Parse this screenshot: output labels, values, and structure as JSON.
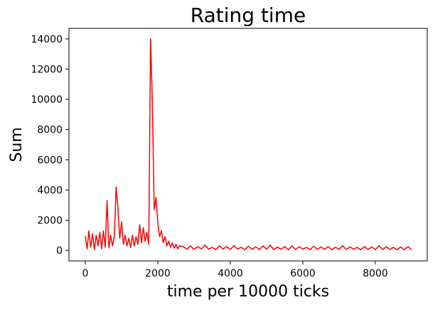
{
  "chart_data": {
    "type": "line",
    "title": "Rating time",
    "x_label": "time per 10000 ticks",
    "y_label": "Sum",
    "x": [
      0,
      50,
      100,
      150,
      200,
      250,
      300,
      350,
      400,
      450,
      500,
      550,
      600,
      650,
      700,
      750,
      800,
      850,
      900,
      950,
      1000,
      1050,
      1100,
      1150,
      1200,
      1250,
      1300,
      1350,
      1400,
      1450,
      1500,
      1550,
      1600,
      1650,
      1700,
      1750,
      1800,
      1850,
      1900,
      1950,
      2000,
      2050,
      2100,
      2150,
      2200,
      2250,
      2300,
      2350,
      2400,
      2450,
      2500,
      2550,
      2600,
      2700,
      2800,
      2900,
      3000,
      3100,
      3200,
      3300,
      3400,
      3500,
      3600,
      3700,
      3800,
      3900,
      4000,
      4100,
      4200,
      4300,
      4400,
      4500,
      4600,
      4700,
      4800,
      4900,
      5000,
      5100,
      5200,
      5300,
      5400,
      5500,
      5600,
      5700,
      5800,
      5900,
      6000,
      6100,
      6200,
      6300,
      6400,
      6500,
      6600,
      6700,
      6800,
      6900,
      7000,
      7100,
      7200,
      7300,
      7400,
      7500,
      7600,
      7700,
      7800,
      7900,
      8000,
      8100,
      8200,
      8300,
      8400,
      8500,
      8600,
      8700,
      8800,
      8900,
      9000
    ],
    "series": [
      {
        "name": "Sum",
        "color": "#ff0000",
        "values": [
          950,
          100,
          1300,
          200,
          1100,
          50,
          1000,
          300,
          1200,
          100,
          1300,
          200,
          3300,
          150,
          1000,
          300,
          900,
          4200,
          2800,
          800,
          1900,
          400,
          1000,
          300,
          800,
          200,
          1000,
          300,
          900,
          400,
          1700,
          500,
          1500,
          600,
          1200,
          400,
          14000,
          9700,
          2700,
          3500,
          1800,
          900,
          1300,
          500,
          900,
          300,
          600,
          200,
          500,
          150,
          400,
          100,
          300,
          250,
          80,
          300,
          60,
          250,
          100,
          350,
          80,
          200,
          50,
          300,
          90,
          250,
          60,
          320,
          80,
          200,
          50,
          280,
          70,
          230,
          60,
          300,
          80,
          350,
          50,
          220,
          70,
          260,
          40,
          300,
          60,
          240,
          80,
          200,
          50,
          280,
          60,
          230,
          70,
          250,
          40,
          210,
          60,
          300,
          50,
          230,
          70,
          200,
          40,
          260,
          60,
          220,
          50,
          300,
          40,
          250,
          60,
          200,
          50,
          230,
          40,
          250,
          30
        ]
      }
    ],
    "xlim": [
      -451,
      9431
    ],
    "ylim": [
      -700,
      14700
    ],
    "xticks": [
      0,
      2000,
      4000,
      6000,
      8000
    ],
    "yticks": [
      0,
      2000,
      4000,
      6000,
      8000,
      10000,
      12000,
      14000
    ]
  }
}
